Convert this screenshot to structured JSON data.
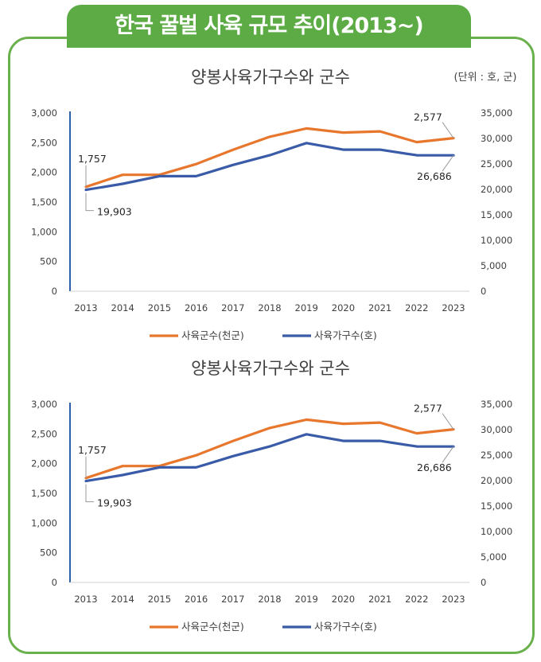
{
  "banner": {
    "title": "한국 꿀벌 사육 규모 추이(2013~)"
  },
  "colors": {
    "frame": "#6ab04c",
    "banner": "#5cab45",
    "orange": "#e8772e",
    "blue": "#3a5ba8",
    "axis": "#2e5fa8"
  },
  "chart_data": [
    {
      "type": "line",
      "title": "양봉사육가구수와 군수",
      "unit_note": "(단위 : 호, 군)",
      "x": [
        "2013",
        "2014",
        "2015",
        "2016",
        "2017",
        "2018",
        "2019",
        "2020",
        "2021",
        "2022",
        "2023"
      ],
      "series": [
        {
          "name": "사육군수(천군)",
          "axis": "left",
          "color": "#e8772e",
          "values": [
            1757,
            1960,
            1960,
            2140,
            2380,
            2600,
            2740,
            2670,
            2690,
            2510,
            2577
          ]
        },
        {
          "name": "사육가구수(호)",
          "axis": "right",
          "color": "#3a5ba8",
          "values": [
            19903,
            21100,
            22600,
            22600,
            24800,
            26700,
            29100,
            27800,
            27800,
            26700,
            26686
          ]
        }
      ],
      "y_left": {
        "min": 0,
        "max": 3000,
        "ticks": [
          "0",
          "500",
          "1,000",
          "1,500",
          "2,000",
          "2,500",
          "3,000"
        ]
      },
      "y_right": {
        "min": 0,
        "max": 35000,
        "ticks": [
          "0",
          "5,000",
          "10,000",
          "15,000",
          "20,000",
          "25,000",
          "30,000",
          "35,000"
        ]
      },
      "annotations": [
        {
          "text": "1,757",
          "series": 0,
          "index": 0
        },
        {
          "text": "19,903",
          "series": 1,
          "index": 0
        },
        {
          "text": "2,577",
          "series": 0,
          "index": 10
        },
        {
          "text": "26,686",
          "series": 1,
          "index": 10
        }
      ],
      "grid": false,
      "legend": "bottom"
    },
    {
      "type": "line",
      "title": "양봉사육가구수와 군수",
      "x": [
        "2013",
        "2014",
        "2015",
        "2016",
        "2017",
        "2018",
        "2019",
        "2020",
        "2021",
        "2022",
        "2023"
      ],
      "series": [
        {
          "name": "사육군수(천군)",
          "axis": "left",
          "color": "#e8772e",
          "values": [
            1757,
            1960,
            1960,
            2140,
            2380,
            2600,
            2740,
            2670,
            2690,
            2510,
            2577
          ]
        },
        {
          "name": "사육가구수(호)",
          "axis": "right",
          "color": "#3a5ba8",
          "values": [
            19903,
            21100,
            22600,
            22600,
            24800,
            26700,
            29100,
            27800,
            27800,
            26700,
            26686
          ]
        }
      ],
      "y_left": {
        "min": 0,
        "max": 3000,
        "ticks": [
          "0",
          "500",
          "1,000",
          "1,500",
          "2,000",
          "2,500",
          "3,000"
        ]
      },
      "y_right": {
        "min": 0,
        "max": 35000,
        "ticks": [
          "0",
          "5,000",
          "10,000",
          "15,000",
          "20,000",
          "25,000",
          "30,000",
          "35,000"
        ]
      },
      "annotations": [
        {
          "text": "1,757",
          "series": 0,
          "index": 0
        },
        {
          "text": "19,903",
          "series": 1,
          "index": 0
        },
        {
          "text": "2,577",
          "series": 0,
          "index": 10
        },
        {
          "text": "26,686",
          "series": 1,
          "index": 10
        }
      ],
      "grid": false,
      "legend": "bottom"
    }
  ]
}
